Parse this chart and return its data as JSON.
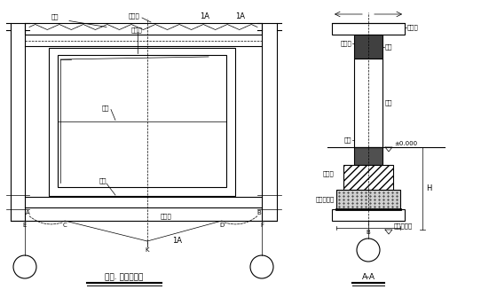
{
  "bg_color": "#ffffff",
  "line_color": "#000000",
  "title1": "图一. 门框架布置",
  "title2": "A-A",
  "label_kongxinban": "空心板",
  "label_quanliang": "圈梁",
  "label_menkuang": "门框架",
  "label_menzhen": "门桢",
  "label_diliang": "地梁",
  "label_dijiaoban": "地基层",
  "label_hunningtu": "混凝土垫层",
  "label_jijiao": "基基底标高",
  "label_pm000": "±0.000",
  "label_1A": "1A",
  "label_AA": "A-A"
}
